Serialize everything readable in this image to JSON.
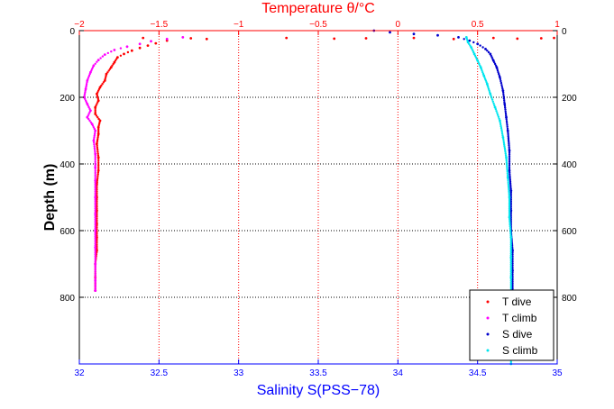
{
  "chart_data": {
    "type": "scatter",
    "top_axis": {
      "label": "Temperature θ/°C",
      "range": [
        -2,
        1
      ],
      "ticks": [
        -2,
        -1.5,
        -1,
        -0.5,
        0,
        0.5,
        1
      ],
      "tick_labels": [
        "−2",
        "−1.5",
        "−1",
        "−0.5",
        "0",
        "0.5",
        "1"
      ],
      "color": "#ff0000"
    },
    "bottom_axis": {
      "label": "Salinity S(PSS−78)",
      "range": [
        32,
        35
      ],
      "ticks": [
        32,
        32.5,
        33,
        33.5,
        34,
        34.5,
        35
      ],
      "tick_labels": [
        "32",
        "32.5",
        "33",
        "33.5",
        "34",
        "34.5",
        "35"
      ],
      "color": "#0000ff"
    },
    "y_axis": {
      "label": "Depth (m)",
      "range": [
        0,
        1000
      ],
      "reversed": true,
      "ticks": [
        0,
        200,
        400,
        600,
        800
      ],
      "tick_labels": [
        "0",
        "200",
        "400",
        "600",
        "800"
      ]
    },
    "grid": "dotted",
    "legend": {
      "placement": "bottom-right"
    },
    "series": [
      {
        "name": "T dive",
        "axis": "temperature",
        "color": "#ff0000",
        "points": [
          [
            -1.45,
            30
          ],
          [
            -1.52,
            38
          ],
          [
            -1.57,
            45
          ],
          [
            -1.62,
            52
          ],
          [
            -1.67,
            60
          ],
          [
            -1.72,
            70
          ],
          [
            -1.76,
            80
          ],
          [
            -1.78,
            95
          ],
          [
            -1.8,
            110
          ],
          [
            -1.83,
            130
          ],
          [
            -1.84,
            150
          ],
          [
            -1.87,
            170
          ],
          [
            -1.89,
            190
          ],
          [
            -1.88,
            210
          ],
          [
            -1.9,
            230
          ],
          [
            -1.9,
            250
          ],
          [
            -1.87,
            270
          ],
          [
            -1.88,
            290
          ],
          [
            -1.88,
            310
          ],
          [
            -1.89,
            340
          ],
          [
            -1.88,
            380
          ],
          [
            -1.88,
            420
          ],
          [
            -1.89,
            460
          ],
          [
            -1.89,
            500
          ],
          [
            -1.89,
            540
          ],
          [
            -1.89,
            580
          ],
          [
            -1.89,
            620
          ],
          [
            -1.89,
            660
          ],
          [
            -1.9,
            700
          ],
          [
            -1.9,
            740
          ],
          [
            -1.9,
            780
          ],
          [
            -1.6,
            22
          ],
          [
            -1.3,
            23
          ],
          [
            -1.2,
            25
          ],
          [
            -0.7,
            22
          ],
          [
            -0.4,
            24
          ],
          [
            -0.2,
            23
          ],
          [
            0.1,
            22
          ],
          [
            0.35,
            25
          ],
          [
            0.6,
            22
          ],
          [
            0.75,
            24
          ],
          [
            0.9,
            23
          ],
          [
            0.98,
            22
          ]
        ]
      },
      {
        "name": "T climb",
        "axis": "temperature",
        "color": "#ff00ff",
        "points": [
          [
            -1.35,
            20
          ],
          [
            -1.45,
            25
          ],
          [
            -1.55,
            32
          ],
          [
            -1.62,
            40
          ],
          [
            -1.7,
            48
          ],
          [
            -1.78,
            58
          ],
          [
            -1.84,
            72
          ],
          [
            -1.88,
            88
          ],
          [
            -1.91,
            105
          ],
          [
            -1.93,
            125
          ],
          [
            -1.95,
            150
          ],
          [
            -1.96,
            175
          ],
          [
            -1.97,
            200
          ],
          [
            -1.95,
            220
          ],
          [
            -1.93,
            240
          ],
          [
            -1.95,
            260
          ],
          [
            -1.92,
            280
          ],
          [
            -1.9,
            300
          ],
          [
            -1.91,
            330
          ],
          [
            -1.9,
            370
          ],
          [
            -1.9,
            410
          ],
          [
            -1.9,
            450
          ],
          [
            -1.9,
            500
          ],
          [
            -1.9,
            550
          ],
          [
            -1.9,
            600
          ],
          [
            -1.9,
            650
          ],
          [
            -1.9,
            700
          ],
          [
            -1.9,
            750
          ],
          [
            -1.9,
            780
          ]
        ]
      },
      {
        "name": "S dive",
        "axis": "salinity",
        "color": "#0000cc",
        "points": [
          [
            33.85,
            0
          ],
          [
            33.95,
            5
          ],
          [
            34.1,
            10
          ],
          [
            34.25,
            14
          ],
          [
            34.38,
            20
          ],
          [
            34.45,
            30
          ],
          [
            34.5,
            40
          ],
          [
            34.55,
            55
          ],
          [
            34.58,
            70
          ],
          [
            34.6,
            90
          ],
          [
            34.62,
            110
          ],
          [
            34.64,
            140
          ],
          [
            34.66,
            180
          ],
          [
            34.67,
            220
          ],
          [
            34.68,
            260
          ],
          [
            34.69,
            300
          ],
          [
            34.7,
            360
          ],
          [
            34.7,
            420
          ],
          [
            34.71,
            480
          ],
          [
            34.71,
            540
          ],
          [
            34.71,
            600
          ],
          [
            34.72,
            660
          ],
          [
            34.72,
            720
          ],
          [
            34.72,
            780
          ],
          [
            34.72,
            800
          ]
        ]
      },
      {
        "name": "S climb",
        "axis": "salinity",
        "color": "#00e5ee",
        "points": [
          [
            34.43,
            20
          ],
          [
            34.44,
            35
          ],
          [
            34.46,
            50
          ],
          [
            34.48,
            70
          ],
          [
            34.5,
            90
          ],
          [
            34.52,
            110
          ],
          [
            34.54,
            135
          ],
          [
            34.56,
            160
          ],
          [
            34.58,
            190
          ],
          [
            34.61,
            230
          ],
          [
            34.64,
            270
          ],
          [
            34.66,
            320
          ],
          [
            34.68,
            380
          ],
          [
            34.69,
            440
          ],
          [
            34.7,
            500
          ],
          [
            34.7,
            560
          ],
          [
            34.71,
            620
          ],
          [
            34.71,
            680
          ],
          [
            34.71,
            740
          ],
          [
            34.71,
            800
          ],
          [
            34.71,
            850
          ],
          [
            34.71,
            950
          ],
          [
            34.71,
            1000
          ]
        ]
      }
    ]
  }
}
